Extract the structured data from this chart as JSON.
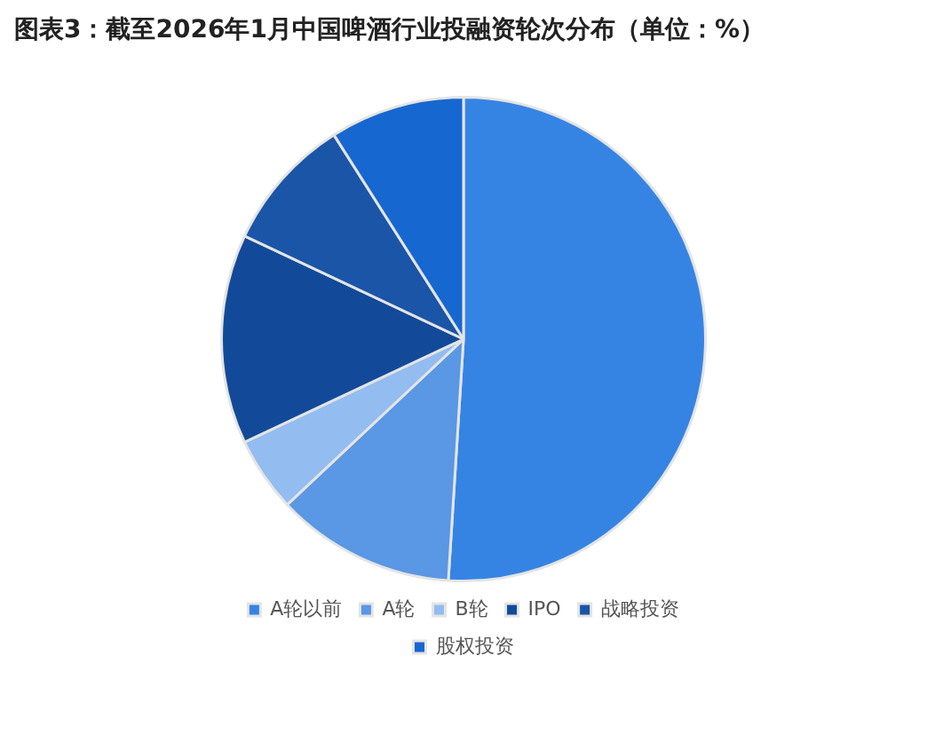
{
  "chart_data": {
    "type": "pie",
    "title": "图表3：截至2026年1月中国啤酒行业投融资轮次分布（单位：%）",
    "categories": [
      "A轮以前",
      "A轮",
      "B轮",
      "IPO",
      "战略投资",
      "股权投资"
    ],
    "values": [
      51,
      12,
      5,
      14,
      9,
      9
    ],
    "colors": [
      "#3584e4",
      "#5a97e4",
      "#93bcf0",
      "#124a99",
      "#1a55a8",
      "#1767d0"
    ],
    "legend": "bottom"
  }
}
